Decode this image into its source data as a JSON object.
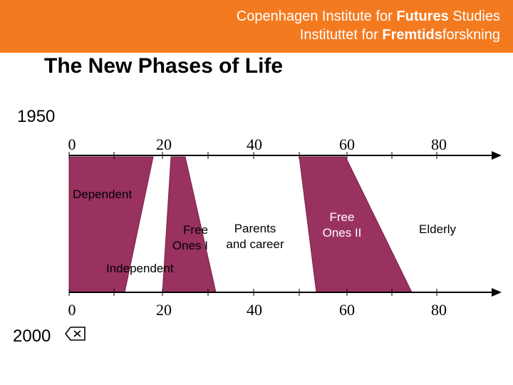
{
  "header": {
    "line1_plain": "Copenhagen Institute for ",
    "line1_bold": "Futures",
    "line1_end": " Studies",
    "line2_plain": "Instituttet for ",
    "line2_bold": "Fremtids",
    "line2_end": "forskning",
    "bg_color": "#f47a20"
  },
  "title": "The New Phases of Life",
  "years": {
    "top": "1950",
    "bottom": "2000"
  },
  "axis_ticks_top": [
    "0",
    "20",
    "40",
    "60",
    "80"
  ],
  "axis_ticks_bottom": [
    "0",
    "20",
    "40",
    "60",
    "80"
  ],
  "phases": {
    "dependent": "Dependent",
    "free_ones_1_line1": "Free",
    "free_ones_1_line2": "Ones I",
    "parents_line1": "Parents",
    "parents_line2": "and career",
    "free_ones_2_line1": "Free",
    "free_ones_2_line2": "Ones II",
    "elderly": "Elderly",
    "independent": "Independent"
  },
  "colors": {
    "phase_fill": "#99325f"
  },
  "icons": {
    "year_2000_marker": "delete-left-icon"
  }
}
